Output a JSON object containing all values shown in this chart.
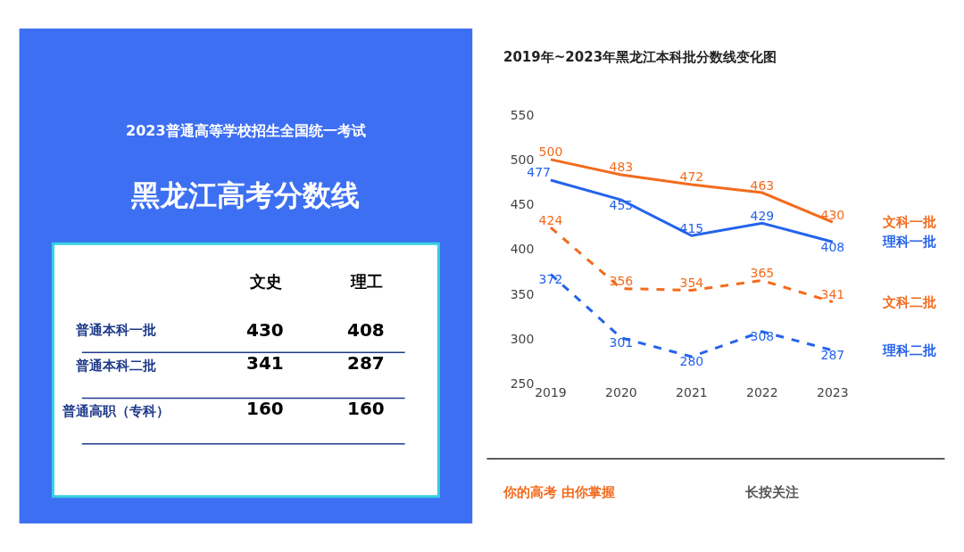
{
  "chart_data": [
    {
      "type": "other",
      "title": "2023普通高等学校招生全国统一考试",
      "subtitle": "黑龙江高考分数线",
      "annotations": [
        "文史",
        "理工",
        "普通本科一批",
        "430",
        "408",
        "普通本科二批",
        "341",
        "287",
        "普通高职（专科）",
        "160",
        "160"
      ]
    },
    {
      "type": "line",
      "title": "2019年~2023年黑龙江本科批分数线变化图",
      "categories": [
        "2019",
        "2020",
        "2021",
        "2022",
        "2023"
      ],
      "series": [
        {
          "name": "文科一批",
          "color": "#f26b1d",
          "line_style": "solid",
          "values": [
            500,
            483,
            472,
            463,
            430
          ]
        },
        {
          "name": "理科一批",
          "color": "#2563eb",
          "line_style": "solid",
          "values": [
            477,
            455,
            415,
            429,
            408
          ]
        },
        {
          "name": "文科二批",
          "color": "#f26b1d",
          "line_style": "dashed",
          "values": [
            424,
            356,
            354,
            365,
            341
          ]
        },
        {
          "name": "理科二批",
          "color": "#2563eb",
          "line_style": "dashed",
          "values": [
            372,
            301,
            280,
            308,
            287
          ]
        }
      ],
      "ylim": [
        250,
        550
      ],
      "yticks": [
        250,
        300,
        350,
        400,
        450,
        500,
        550
      ],
      "legend": false,
      "marker": "none",
      "data_labels": true,
      "annotations": [
        "你的高考 由你掌握",
        "长按关注"
      ]
    }
  ]
}
